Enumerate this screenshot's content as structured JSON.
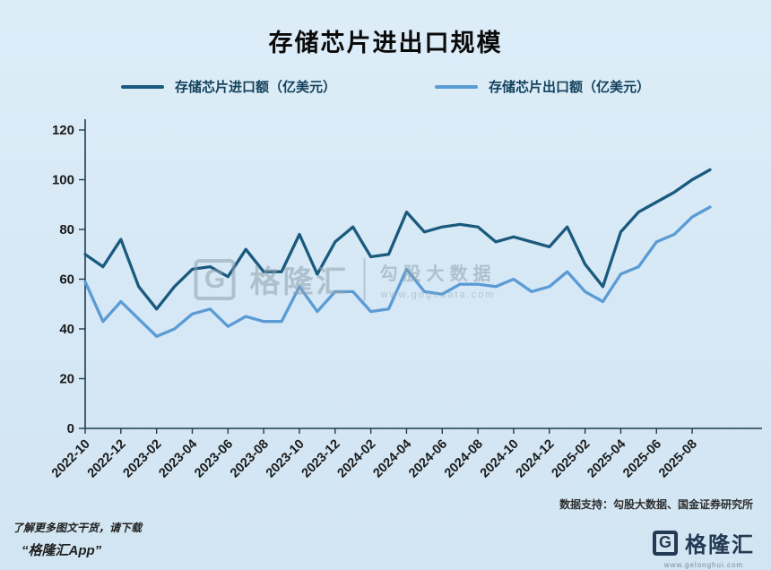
{
  "title": "存储芯片进出口规模",
  "legend": [
    {
      "label": "存储芯片进口额（亿美元）",
      "color": "#1a5a7e"
    },
    {
      "label": "存储芯片出口额（亿美元）",
      "color": "#5b9bd5"
    }
  ],
  "chart_data": {
    "type": "line",
    "x": [
      "2022-10",
      "2022-11",
      "2022-12",
      "2023-01",
      "2023-02",
      "2023-03",
      "2023-04",
      "2023-05",
      "2023-06",
      "2023-07",
      "2023-08",
      "2023-09",
      "2023-10",
      "2023-11",
      "2023-12",
      "2024-01",
      "2024-02",
      "2024-03",
      "2024-04",
      "2024-05",
      "2024-06",
      "2024-07",
      "2024-08",
      "2024-09",
      "2024-10",
      "2024-11",
      "2024-12",
      "2025-01",
      "2025-02",
      "2025-03",
      "2025-04",
      "2025-05",
      "2025-06",
      "2025-07",
      "2025-08",
      "2025-09"
    ],
    "x_tick_labels": [
      "2022-10",
      "2022-12",
      "2023-02",
      "2023-04",
      "2023-06",
      "2023-08",
      "2023-10",
      "2023-12",
      "2024-02",
      "2024-04",
      "2024-06",
      "2024-08",
      "2024-10",
      "2024-12",
      "2025-02",
      "2025-04",
      "2025-06",
      "2025-08"
    ],
    "series": [
      {
        "name": "存储芯片进口额（亿美元）",
        "color": "#1a5a7e",
        "values": [
          70,
          65,
          76,
          57,
          48,
          57,
          64,
          65,
          61,
          72,
          63,
          63,
          78,
          62,
          75,
          81,
          69,
          70,
          87,
          79,
          81,
          82,
          81,
          75,
          77,
          75,
          73,
          81,
          66,
          57,
          79,
          87,
          91,
          95,
          100,
          104
        ]
      },
      {
        "name": "存储芯片出口额（亿美元）",
        "color": "#5b9bd5",
        "values": [
          59,
          43,
          51,
          44,
          37,
          40,
          46,
          48,
          41,
          45,
          43,
          43,
          57,
          47,
          55,
          55,
          47,
          48,
          64,
          55,
          54,
          58,
          58,
          57,
          60,
          55,
          57,
          63,
          55,
          51,
          62,
          65,
          75,
          78,
          85,
          89
        ]
      }
    ],
    "ylim": [
      0,
      120
    ],
    "yticks": [
      0,
      20,
      40,
      60,
      80,
      100,
      120
    ],
    "xlabel": "",
    "ylabel": "",
    "grid": false,
    "legend_position": "top"
  },
  "watermark": {
    "g": "G",
    "brand": "格隆汇",
    "partner": "勾股大数据",
    "url": "www.gogudata.com"
  },
  "source_note": "数据支持：勾股大数据、国金证券研究所",
  "footer": {
    "promo_line1": "了解更多图文干货，请下载",
    "promo_line2": "“格隆汇App”",
    "brand_g": "G",
    "brand": "格隆汇",
    "brand_url": "www.gelonghui.com"
  }
}
